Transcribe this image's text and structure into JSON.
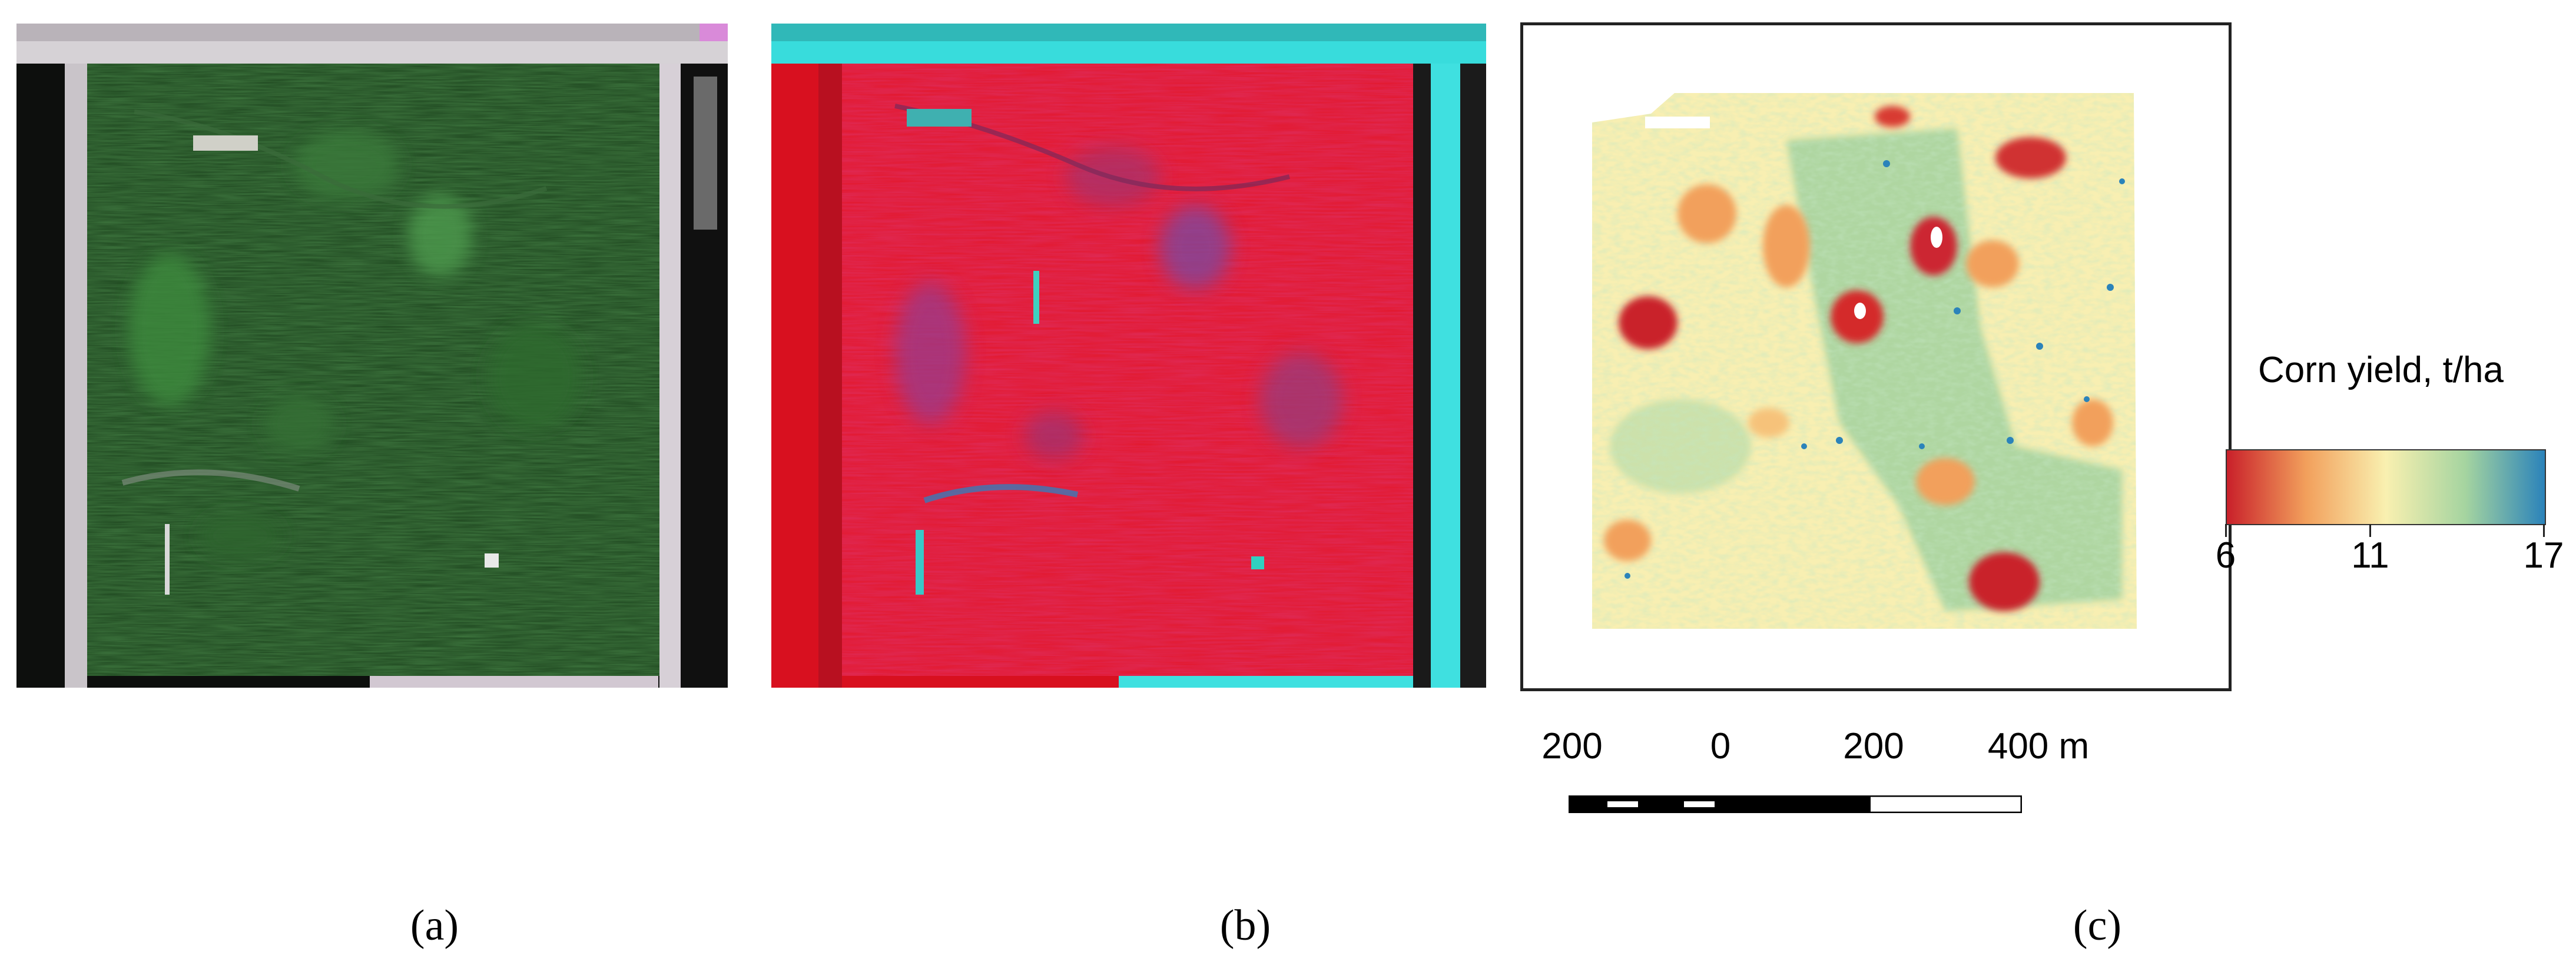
{
  "panels": [
    {
      "id": "a",
      "label": "(a)",
      "description": "natural-color aerial image of field"
    },
    {
      "id": "b",
      "label": "(b)",
      "description": "false-color (NIR) aerial image of field"
    },
    {
      "id": "c",
      "label": "(c)",
      "description": "corn yield map"
    }
  ],
  "legend": {
    "title": "Corn yield, t/ha",
    "min": 6,
    "mid": 11,
    "max": 17,
    "tick_labels": [
      "6",
      "11",
      "17"
    ],
    "colors": [
      "#c9202a",
      "#f2a05c",
      "#f9f0b0",
      "#a5d4a0",
      "#2b83ba"
    ]
  },
  "scale_bar": {
    "labels": [
      "200",
      "0",
      "200",
      "400 m"
    ],
    "unit": "m"
  },
  "colors": {
    "panel_a_base": "#1e4a1e",
    "panel_b_base": "#e0182a",
    "panel_b_road": "#3fe0e0",
    "yield_low": "#c9202a",
    "yield_mid": "#f9f0b0",
    "yield_high": "#2b83ba"
  }
}
